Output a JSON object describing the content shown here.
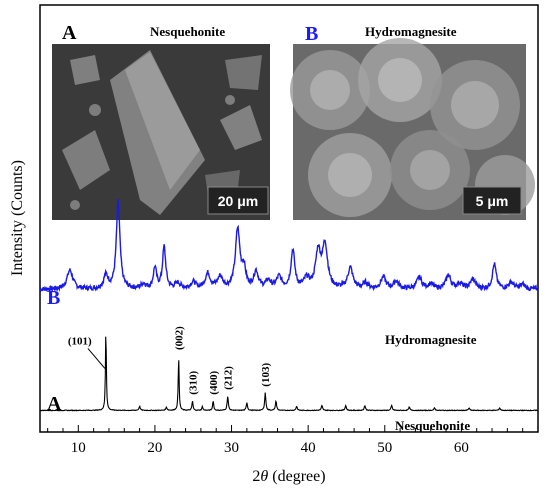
{
  "figure": {
    "ylabel": "Intensity (Counts)",
    "xlabel_prefix": "2",
    "xlabel_theta": "θ",
    "xlabel_suffix": " (degree)"
  },
  "insets": [
    {
      "panel": "A",
      "title": "Nesquehonite",
      "scale_bar": "20 μm",
      "panel_color": "#000000"
    },
    {
      "panel": "B",
      "title": "Hydromagnesite",
      "scale_bar": "5 μm",
      "panel_color": "#1a1aff"
    }
  ],
  "chart_data": {
    "type": "line",
    "xlim": [
      5,
      70
    ],
    "x_ticks": [
      10,
      20,
      30,
      40,
      50,
      60
    ],
    "grid": false,
    "series": [
      {
        "name": "Hydromagnesite",
        "panel_label": "B",
        "color": "#1a1ae6",
        "baseline": 0.27,
        "noise": 0.025,
        "peaks": [
          {
            "x": 8.9,
            "h": 0.2,
            "w": 0.45
          },
          {
            "x": 13.6,
            "h": 0.14,
            "w": 0.35
          },
          {
            "x": 15.2,
            "h": 0.92,
            "w": 0.28
          },
          {
            "x": 18.5,
            "h": 0.05,
            "w": 0.4
          },
          {
            "x": 20.0,
            "h": 0.22,
            "w": 0.25
          },
          {
            "x": 21.2,
            "h": 0.44,
            "w": 0.25
          },
          {
            "x": 23.0,
            "h": 0.06,
            "w": 0.4
          },
          {
            "x": 25.0,
            "h": 0.07,
            "w": 0.4
          },
          {
            "x": 26.9,
            "h": 0.16,
            "w": 0.4
          },
          {
            "x": 28.5,
            "h": 0.12,
            "w": 0.4
          },
          {
            "x": 30.8,
            "h": 0.62,
            "w": 0.35
          },
          {
            "x": 31.6,
            "h": 0.2,
            "w": 0.3
          },
          {
            "x": 33.2,
            "h": 0.18,
            "w": 0.35
          },
          {
            "x": 34.8,
            "h": 0.08,
            "w": 0.4
          },
          {
            "x": 36.2,
            "h": 0.12,
            "w": 0.4
          },
          {
            "x": 38.0,
            "h": 0.4,
            "w": 0.3
          },
          {
            "x": 39.8,
            "h": 0.1,
            "w": 0.4
          },
          {
            "x": 41.3,
            "h": 0.38,
            "w": 0.4
          },
          {
            "x": 42.2,
            "h": 0.45,
            "w": 0.4
          },
          {
            "x": 45.5,
            "h": 0.22,
            "w": 0.4
          },
          {
            "x": 47.5,
            "h": 0.06,
            "w": 0.4
          },
          {
            "x": 49.8,
            "h": 0.12,
            "w": 0.4
          },
          {
            "x": 51.5,
            "h": 0.08,
            "w": 0.4
          },
          {
            "x": 54.5,
            "h": 0.12,
            "w": 0.4
          },
          {
            "x": 56.0,
            "h": 0.05,
            "w": 0.4
          },
          {
            "x": 58.3,
            "h": 0.14,
            "w": 0.4
          },
          {
            "x": 59.8,
            "h": 0.06,
            "w": 0.4
          },
          {
            "x": 61.5,
            "h": 0.1,
            "w": 0.4
          },
          {
            "x": 64.3,
            "h": 0.26,
            "w": 0.3
          },
          {
            "x": 66.5,
            "h": 0.07,
            "w": 0.4
          },
          {
            "x": 68.0,
            "h": 0.05,
            "w": 0.4
          }
        ]
      },
      {
        "name": "Nesquehonite",
        "panel_label": "A",
        "color": "#000000",
        "baseline": 0.02,
        "noise": 0.004,
        "peaks": [
          {
            "x": 13.6,
            "h": 1.0,
            "w": 0.07
          },
          {
            "x": 18.0,
            "h": 0.05,
            "w": 0.1
          },
          {
            "x": 21.5,
            "h": 0.04,
            "w": 0.1
          },
          {
            "x": 23.1,
            "h": 0.68,
            "w": 0.07
          },
          {
            "x": 24.9,
            "h": 0.12,
            "w": 0.08
          },
          {
            "x": 26.2,
            "h": 0.05,
            "w": 0.08
          },
          {
            "x": 27.6,
            "h": 0.12,
            "w": 0.08
          },
          {
            "x": 29.5,
            "h": 0.18,
            "w": 0.09
          },
          {
            "x": 32.0,
            "h": 0.1,
            "w": 0.09
          },
          {
            "x": 34.4,
            "h": 0.22,
            "w": 0.09
          },
          {
            "x": 35.8,
            "h": 0.12,
            "w": 0.09
          },
          {
            "x": 38.5,
            "h": 0.05,
            "w": 0.1
          },
          {
            "x": 41.8,
            "h": 0.06,
            "w": 0.1
          },
          {
            "x": 44.9,
            "h": 0.06,
            "w": 0.1
          },
          {
            "x": 47.4,
            "h": 0.06,
            "w": 0.1
          },
          {
            "x": 50.9,
            "h": 0.06,
            "w": 0.1
          },
          {
            "x": 53.2,
            "h": 0.04,
            "w": 0.1
          },
          {
            "x": 56.5,
            "h": 0.03,
            "w": 0.1
          },
          {
            "x": 61.0,
            "h": 0.03,
            "w": 0.1
          },
          {
            "x": 65.0,
            "h": 0.03,
            "w": 0.1
          }
        ]
      }
    ],
    "annotations": [
      {
        "text": "(101)",
        "x": 13.6,
        "rotate": false
      },
      {
        "text": "(002)",
        "x": 23.1,
        "rotate": true
      },
      {
        "text": "(310)",
        "x": 24.9,
        "rotate": true
      },
      {
        "text": "(400)",
        "x": 27.6,
        "rotate": true
      },
      {
        "text": "(212)",
        "x": 29.5,
        "rotate": true
      },
      {
        "text": "(103)",
        "x": 34.4,
        "rotate": true
      }
    ]
  }
}
